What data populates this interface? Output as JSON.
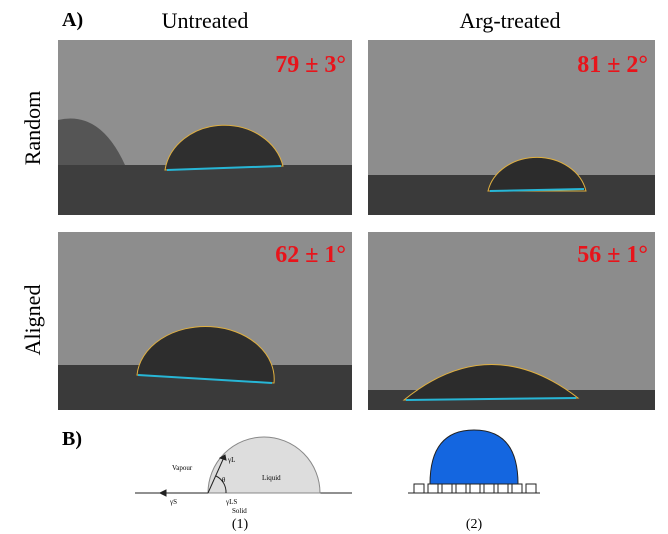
{
  "label_a": "A)",
  "columns": [
    "Untreated",
    "Arg-treated"
  ],
  "rows": [
    "Random",
    "Aligned"
  ],
  "angles": [
    [
      "79 ± 3°",
      "81 ± 2°"
    ],
    [
      "62 ± 1°",
      "56 ± 1°"
    ]
  ],
  "label_b": "B)",
  "diagram1": {
    "gamma_l": "γL",
    "vapour": "Vapour",
    "theta": "θ",
    "liquid": "Liquid",
    "gamma_s": "γS",
    "gamma_ls": "γLS",
    "solid": "Solid",
    "caption": "(1)"
  },
  "diagram2": {
    "caption": "(2)"
  }
}
